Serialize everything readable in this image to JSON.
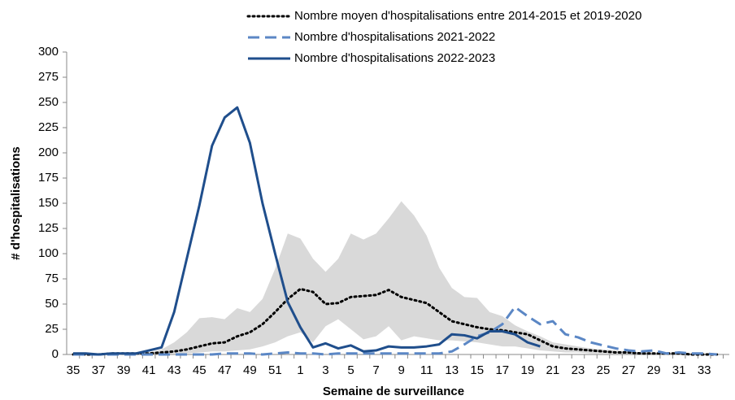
{
  "chart_data": {
    "type": "line",
    "x_label": "Semaine de surveillance",
    "y_label": "# d'hospitalisations",
    "categories": [
      "35",
      null,
      "37",
      null,
      "39",
      null,
      "41",
      null,
      "43",
      null,
      "45",
      null,
      "47",
      null,
      "49",
      null,
      "51",
      null,
      "1",
      null,
      "3",
      null,
      "5",
      null,
      "7",
      null,
      "9",
      null,
      "11",
      null,
      "13",
      null,
      "15",
      null,
      "17",
      null,
      "19",
      null,
      "21",
      null,
      "23",
      null,
      "25",
      null,
      "27",
      null,
      "29",
      null,
      "31",
      null,
      "33",
      null
    ],
    "ylim": [
      0,
      300
    ],
    "yticks": [
      0,
      25,
      50,
      75,
      100,
      125,
      150,
      175,
      200,
      225,
      250,
      275,
      300
    ],
    "band": {
      "color": "#d9d9d9",
      "upper": [
        0,
        0,
        0,
        0,
        0,
        0,
        2,
        5,
        12,
        22,
        36,
        37,
        35,
        46,
        42,
        55,
        85,
        120,
        115,
        95,
        82,
        95,
        120,
        114,
        120,
        135,
        152,
        138,
        118,
        86,
        66,
        57,
        56,
        42,
        38,
        29,
        23,
        18,
        12,
        10,
        8,
        6,
        5,
        4,
        3,
        2,
        2,
        1,
        1,
        1,
        0,
        0
      ],
      "lower": [
        0,
        0,
        0,
        0,
        0,
        0,
        0,
        0,
        1,
        1,
        2,
        3,
        3,
        4,
        5,
        8,
        12,
        18,
        22,
        12,
        28,
        35,
        25,
        15,
        18,
        28,
        14,
        18,
        16,
        14,
        14,
        13,
        12,
        10,
        8,
        8,
        6,
        4,
        3,
        2,
        2,
        1,
        1,
        1,
        0,
        0,
        0,
        0,
        0,
        0,
        0,
        0
      ]
    },
    "series": [
      {
        "name": "Nombre moyen d'hospitalisations entre 2014-2015 et 2019-2020",
        "color": "#000000",
        "style": "dotted",
        "values": [
          0,
          0,
          0,
          1,
          1,
          1,
          1,
          2,
          3,
          5,
          8,
          11,
          12,
          18,
          22,
          30,
          42,
          55,
          65,
          62,
          50,
          51,
          57,
          58,
          59,
          64,
          57,
          54,
          51,
          42,
          33,
          30,
          27,
          25,
          24,
          22,
          20,
          14,
          8,
          6,
          5,
          4,
          3,
          2,
          2,
          1,
          1,
          1,
          1,
          0,
          0,
          0
        ]
      },
      {
        "name": "Nombre d'hospitalisations 2021-2022",
        "color": "#5b87c5",
        "style": "dashed",
        "values": [
          0,
          0,
          0,
          0,
          0,
          0,
          0,
          0,
          0,
          0,
          0,
          0,
          1,
          1,
          1,
          0,
          1,
          2,
          1,
          1,
          0,
          1,
          1,
          1,
          1,
          1,
          1,
          1,
          1,
          1,
          3,
          10,
          18,
          22,
          30,
          47,
          38,
          30,
          33,
          20,
          17,
          12,
          9,
          6,
          4,
          3,
          4,
          1,
          2,
          1,
          1,
          0
        ]
      },
      {
        "name": "Nombre d'hospitalisations 2022-2023",
        "color": "#1f4e8c",
        "style": "solid",
        "values": [
          1,
          1,
          0,
          1,
          1,
          1,
          4,
          7,
          42,
          95,
          148,
          207,
          235,
          245,
          210,
          150,
          100,
          52,
          27,
          7,
          11,
          6,
          9,
          3,
          4,
          8,
          7,
          7,
          8,
          10,
          20,
          19,
          16,
          23,
          23,
          20,
          12,
          8,
          null,
          null,
          null,
          null,
          null,
          null,
          null,
          null,
          null,
          null,
          null,
          null,
          null,
          null
        ]
      }
    ]
  }
}
